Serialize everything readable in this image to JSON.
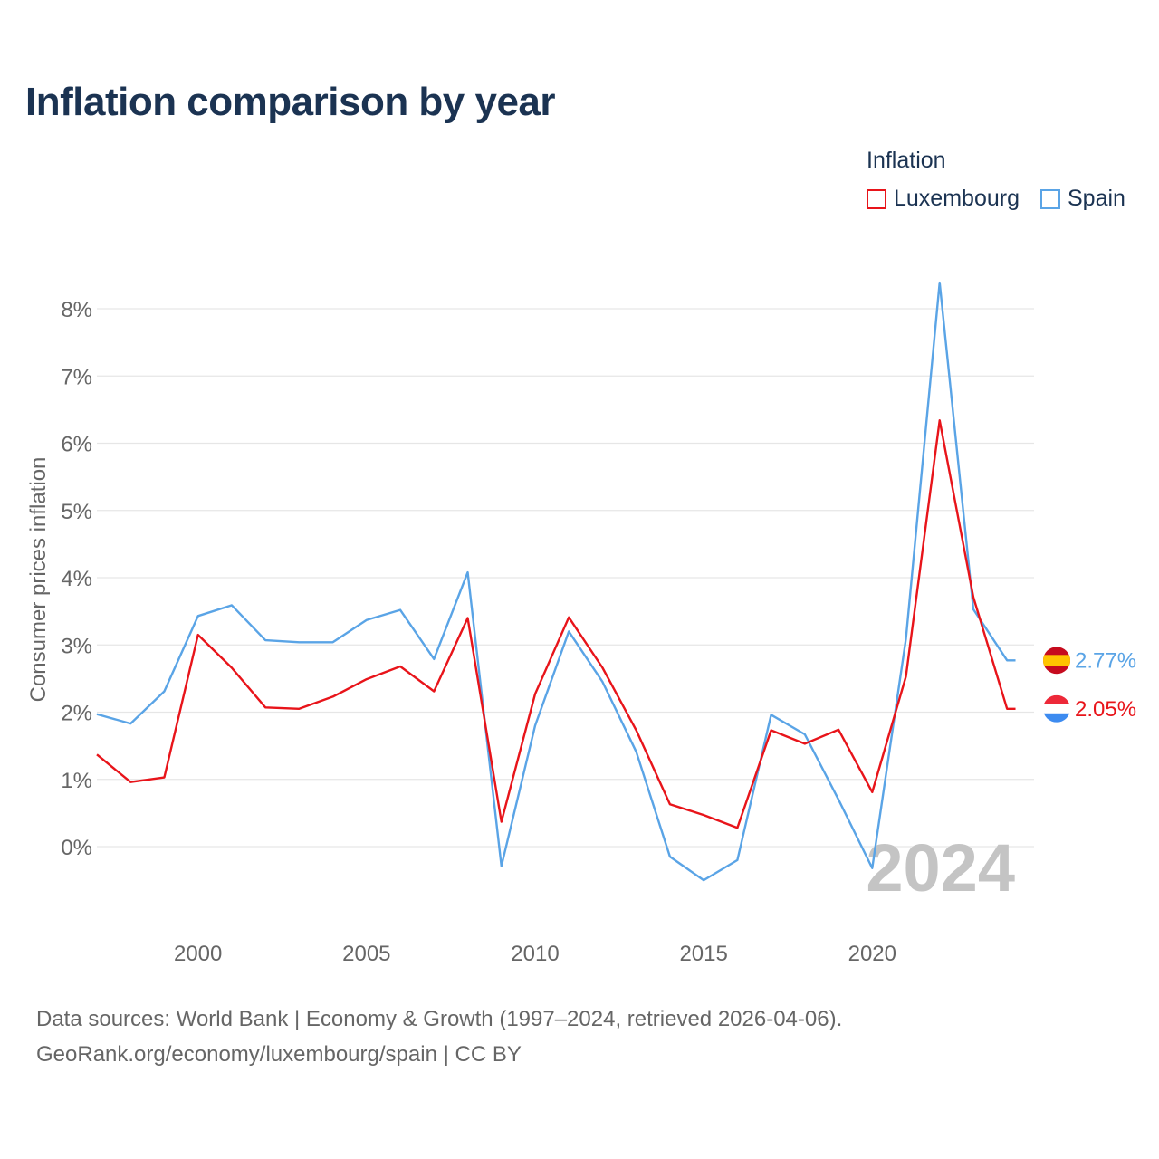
{
  "title": "Inflation comparison by year",
  "legend": {
    "title": "Inflation",
    "items": [
      {
        "name": "Luxembourg",
        "color": "#e8141a"
      },
      {
        "name": "Spain",
        "color": "#5aa4e6"
      }
    ]
  },
  "footer": {
    "line1": "Data sources: World Bank | Economy & Growth (1997–2024, retrieved 2026-04-06).",
    "line2": "GeoRank.org/economy/luxembourg/spain | CC BY"
  },
  "year_watermark": "2024",
  "chart_data": {
    "type": "line",
    "title": "Inflation comparison by year",
    "xlabel": "",
    "ylabel": "Consumer prices inflation",
    "x": [
      1997,
      1998,
      1999,
      2000,
      2001,
      2002,
      2003,
      2004,
      2005,
      2006,
      2007,
      2008,
      2009,
      2010,
      2011,
      2012,
      2013,
      2014,
      2015,
      2016,
      2017,
      2018,
      2019,
      2020,
      2021,
      2022,
      2023,
      2024
    ],
    "xticks": [
      2000,
      2005,
      2010,
      2015,
      2020
    ],
    "xtick_labels": [
      "2000",
      "2005",
      "2010",
      "2015",
      "2020"
    ],
    "xlim": [
      1997,
      2024.8
    ],
    "ylim": [
      -1,
      8.5
    ],
    "yticks": [
      0,
      1,
      2,
      3,
      4,
      5,
      6,
      7,
      8
    ],
    "ytick_labels": [
      "0%",
      "1%",
      "2%",
      "3%",
      "4%",
      "5%",
      "6%",
      "7%",
      "8%"
    ],
    "grid": true,
    "legend_position": "top-right",
    "series": [
      {
        "name": "Luxembourg",
        "color": "#e8141a",
        "values": [
          1.37,
          0.96,
          1.03,
          3.15,
          2.66,
          2.07,
          2.05,
          2.23,
          2.49,
          2.68,
          2.31,
          3.4,
          0.37,
          2.27,
          3.41,
          2.66,
          1.73,
          0.63,
          0.47,
          0.28,
          1.73,
          1.53,
          1.74,
          0.81,
          2.53,
          6.34,
          3.71,
          2.05
        ],
        "end_label": "2.05%"
      },
      {
        "name": "Spain",
        "color": "#5aa4e6",
        "values": [
          1.97,
          1.83,
          2.31,
          3.43,
          3.59,
          3.07,
          3.04,
          3.04,
          3.37,
          3.52,
          2.79,
          4.08,
          -0.29,
          1.8,
          3.2,
          2.45,
          1.41,
          -0.15,
          -0.5,
          -0.2,
          1.96,
          1.67,
          0.7,
          -0.32,
          3.09,
          8.39,
          3.53,
          2.77
        ],
        "end_label": "2.77%"
      }
    ]
  }
}
